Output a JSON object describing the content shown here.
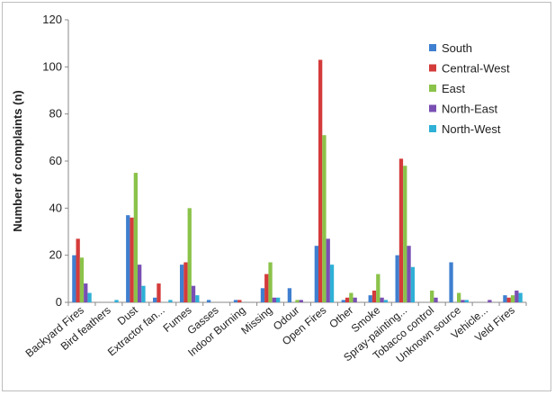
{
  "chart_data": {
    "type": "bar",
    "xlabel": "",
    "ylabel": "Number of complaints (n)",
    "ylim": [
      0,
      120
    ],
    "yticks": [
      0,
      20,
      40,
      60,
      80,
      100,
      120
    ],
    "grid": false,
    "legend_position": "top-right",
    "categories": [
      "Backyard Fires",
      "Bird feathers",
      "Dust",
      "Extractor fan...",
      "Fumes",
      "Gasses",
      "Indoor Burning",
      "Missing",
      "Odour",
      "Open Fires",
      "Other",
      "Smoke",
      "Spray-painting...",
      "Tobacco control",
      "Unknown source",
      "Vehicle...",
      "Veld Fires"
    ],
    "series": [
      {
        "name": "South",
        "color": "#3f7fd0",
        "values": [
          20,
          0,
          37,
          2,
          16,
          1,
          1,
          6,
          6,
          24,
          1,
          3,
          20,
          0,
          17,
          0,
          3
        ]
      },
      {
        "name": "Central-West",
        "color": "#d43b3b",
        "values": [
          27,
          0,
          36,
          8,
          17,
          0,
          1,
          12,
          0,
          103,
          2,
          5,
          61,
          0,
          0,
          0,
          2
        ]
      },
      {
        "name": "East",
        "color": "#8bc34a",
        "values": [
          19,
          0,
          55,
          0,
          40,
          0,
          0,
          17,
          1,
          71,
          4,
          12,
          58,
          5,
          4,
          0,
          3
        ]
      },
      {
        "name": "North-East",
        "color": "#7a4fb3",
        "values": [
          8,
          0,
          16,
          0,
          7,
          0,
          0,
          2,
          1,
          27,
          2,
          2,
          24,
          2,
          1,
          1,
          5
        ]
      },
      {
        "name": "North-West",
        "color": "#2fb0d6",
        "values": [
          4,
          1,
          7,
          1,
          3,
          0,
          0,
          2,
          0,
          16,
          0,
          1,
          15,
          0,
          1,
          0,
          4
        ]
      }
    ]
  }
}
